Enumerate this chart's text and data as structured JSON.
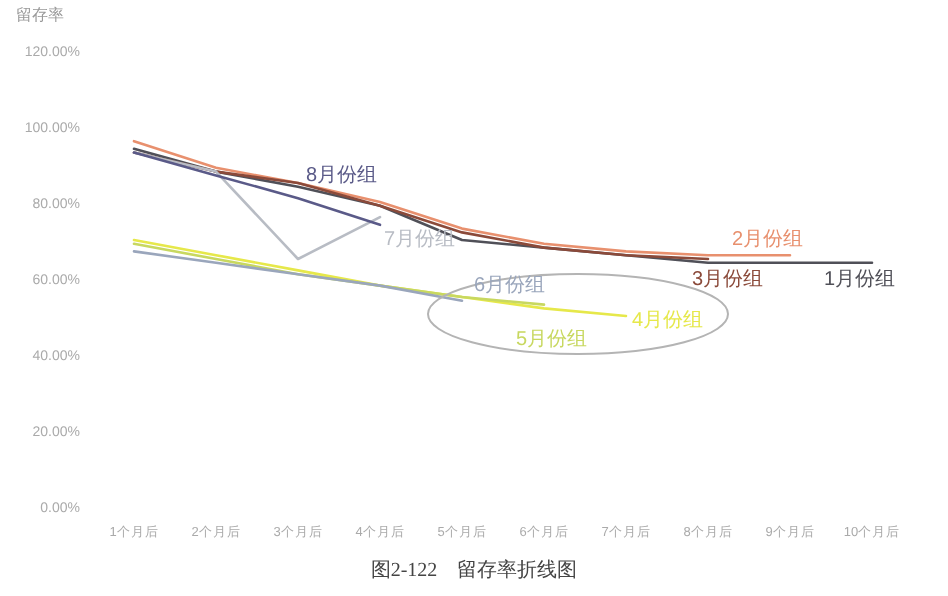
{
  "chart_data": {
    "type": "line",
    "title": "图2-122　留存率折线图",
    "ylabel": "留存率",
    "categories": [
      "1个月后",
      "2个月后",
      "3个月后",
      "4个月后",
      "5个月后",
      "6个月后",
      "7个月后",
      "8个月后",
      "9个月后",
      "10个月后"
    ],
    "ylim": [
      0,
      120
    ],
    "yticks": [
      {
        "value": 0,
        "label": "0.00%"
      },
      {
        "value": 20,
        "label": "20.00%"
      },
      {
        "value": 40,
        "label": "40.00%"
      },
      {
        "value": 60,
        "label": "60.00%"
      },
      {
        "value": 80,
        "label": "80.00%"
      },
      {
        "value": 100,
        "label": "100.00%"
      },
      {
        "value": 120,
        "label": "120.00%"
      }
    ],
    "series": [
      {
        "name": "1月份组",
        "color": "#505058",
        "values": [
          94,
          88,
          84,
          79,
          70,
          68,
          66,
          64,
          64,
          64
        ]
      },
      {
        "name": "2月份组",
        "color": "#e8906e",
        "values": [
          96,
          89,
          85,
          80,
          73,
          69,
          67,
          66,
          66,
          null
        ]
      },
      {
        "name": "3月份组",
        "color": "#8b4a3a",
        "values": [
          93,
          88,
          85,
          79,
          72,
          68,
          66,
          65,
          null,
          null
        ]
      },
      {
        "name": "4月份组",
        "color": "#e6e84a",
        "values": [
          70,
          66,
          62,
          58,
          55,
          52,
          50,
          null,
          null,
          null
        ]
      },
      {
        "name": "5月份组",
        "color": "#c8d860",
        "values": [
          69,
          65,
          61,
          58,
          55,
          53,
          null,
          null,
          null,
          null
        ]
      },
      {
        "name": "6月份组",
        "color": "#9aa6bc",
        "values": [
          67,
          64,
          61,
          58,
          54,
          null,
          null,
          null,
          null,
          null
        ]
      },
      {
        "name": "7月份组",
        "color": "#b8bcc4",
        "values": [
          93,
          88,
          65,
          76,
          null,
          null,
          null,
          null,
          null,
          null
        ]
      },
      {
        "name": "8月份组",
        "color": "#5a5a88",
        "values": [
          93,
          87,
          81,
          74,
          null,
          null,
          null,
          null,
          null,
          null
        ]
      }
    ]
  }
}
